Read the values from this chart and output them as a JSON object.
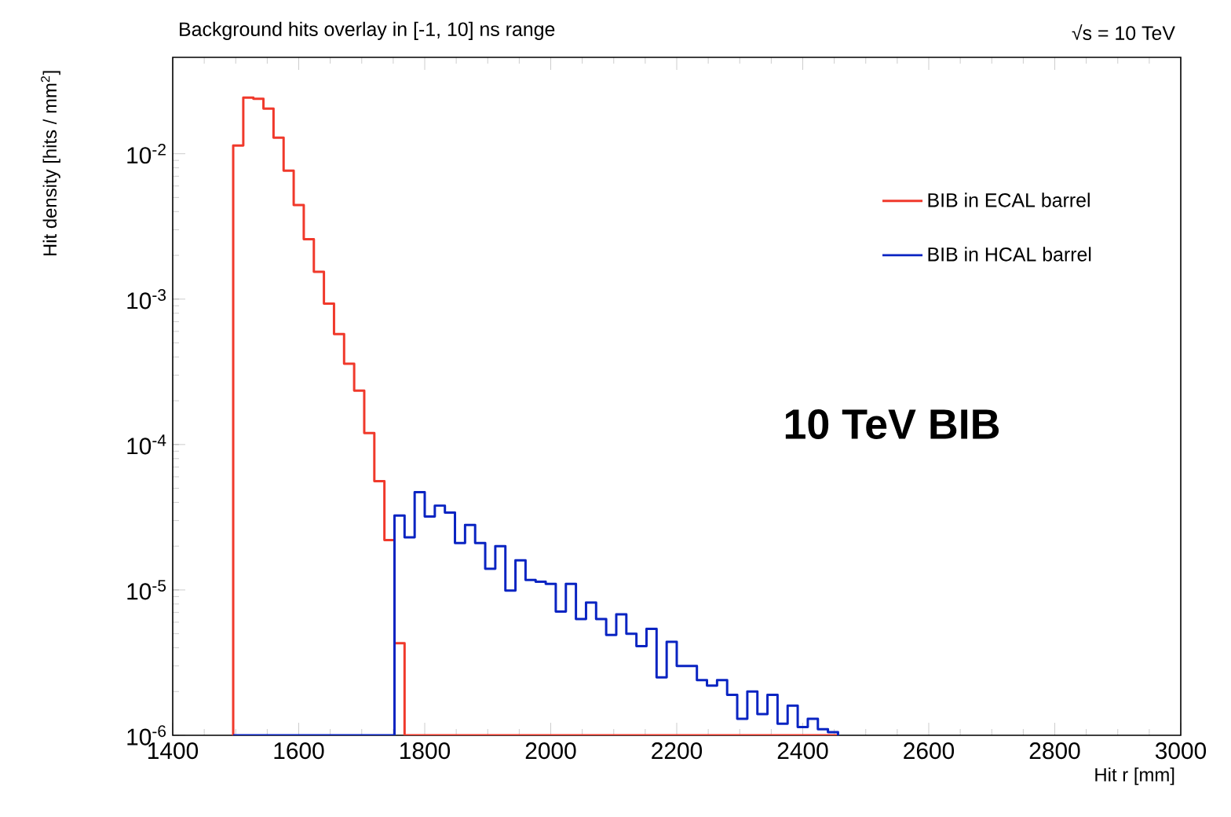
{
  "chart_data": {
    "type": "histogram",
    "title": "Background hits overlay in [-1, 10] ns range",
    "xlabel": "Hit r [mm]",
    "ylabel": "Hit density [hits / mm$^{2}$]",
    "annotations": [
      "√s = 10 TeV",
      "10 TeV BIB"
    ],
    "log": "y",
    "xlim": [
      1400,
      3000
    ],
    "ylim": [
      1e-06,
      0.046
    ],
    "xticks": [
      1400,
      1600,
      1800,
      2000,
      2200,
      2400,
      2600,
      2800,
      3000
    ],
    "yticks": [
      {
        "value": 1e-06,
        "label": "10$^{-6}$"
      },
      {
        "value": 1e-05,
        "label": "10$^{-5}$"
      },
      {
        "value": 0.0001,
        "label": "10$^{-4}$"
      },
      {
        "value": 0.001,
        "label": "10$^{-3}$"
      },
      {
        "value": 0.01,
        "label": "10$^{-2}$"
      }
    ],
    "legend": "top right",
    "grid": false,
    "bins": [
      1496,
      1512,
      1528,
      1544,
      1560,
      1576,
      1592,
      1608,
      1624,
      1640,
      1656,
      1672,
      1688,
      1704,
      1720,
      1736,
      1752,
      1768,
      1784,
      1800,
      1816,
      1832,
      1848,
      1864,
      1880,
      1896,
      1912,
      1928,
      1944,
      1960,
      1976,
      1992,
      2008,
      2024,
      2040,
      2056,
      2072,
      2088,
      2104,
      2120,
      2136,
      2152,
      2168,
      2184,
      2200,
      2216,
      2232,
      2248,
      2264,
      2280,
      2296,
      2312,
      2328,
      2344,
      2360,
      2376,
      2392,
      2408,
      2424,
      2440,
      2456
    ],
    "series": [
      {
        "name": "BIB in ECAL barrel",
        "color": "#f0392b",
        "values": [
          0.0114,
          0.0243,
          0.0239,
          0.0204,
          0.0129,
          0.00765,
          0.00443,
          0.00258,
          0.00154,
          0.00093,
          0.000575,
          0.00036,
          0.000235,
          0.00012,
          5.6e-05,
          2.2e-05,
          4.3e-06,
          null,
          null,
          null,
          null,
          null,
          null,
          null,
          null,
          null,
          null,
          null,
          null,
          null,
          null,
          null,
          null,
          null,
          null,
          null,
          null,
          null,
          null,
          null,
          null,
          null,
          null,
          null,
          null,
          null,
          null,
          null,
          null,
          null,
          null,
          null,
          null,
          null,
          null,
          null,
          null,
          null,
          null,
          null
        ]
      },
      {
        "name": "BIB in HCAL barrel",
        "color": "#0a24c2",
        "values": [
          null,
          null,
          null,
          null,
          null,
          null,
          null,
          null,
          null,
          null,
          null,
          null,
          null,
          null,
          null,
          null,
          3.25e-05,
          2.3e-05,
          4.7e-05,
          3.2e-05,
          3.8e-05,
          3.4e-05,
          2.1e-05,
          2.8e-05,
          2.1e-05,
          1.4e-05,
          2e-05,
          9.9e-06,
          1.6e-05,
          1.17e-05,
          1.14e-05,
          1.1e-05,
          7.1e-06,
          1.1e-05,
          6.3e-06,
          8.2e-06,
          6.3e-06,
          4.9e-06,
          6.8e-06,
          5e-06,
          4.1e-06,
          5.4e-06,
          2.5e-06,
          4.4e-06,
          3e-06,
          3e-06,
          2.4e-06,
          2.2e-06,
          2.4e-06,
          1.9e-06,
          1.3e-06,
          2e-06,
          1.4e-06,
          1.9e-06,
          1.2e-06,
          1.6e-06,
          1.14e-06,
          1.3e-06,
          1.1e-06,
          1.05e-06
        ]
      }
    ]
  }
}
